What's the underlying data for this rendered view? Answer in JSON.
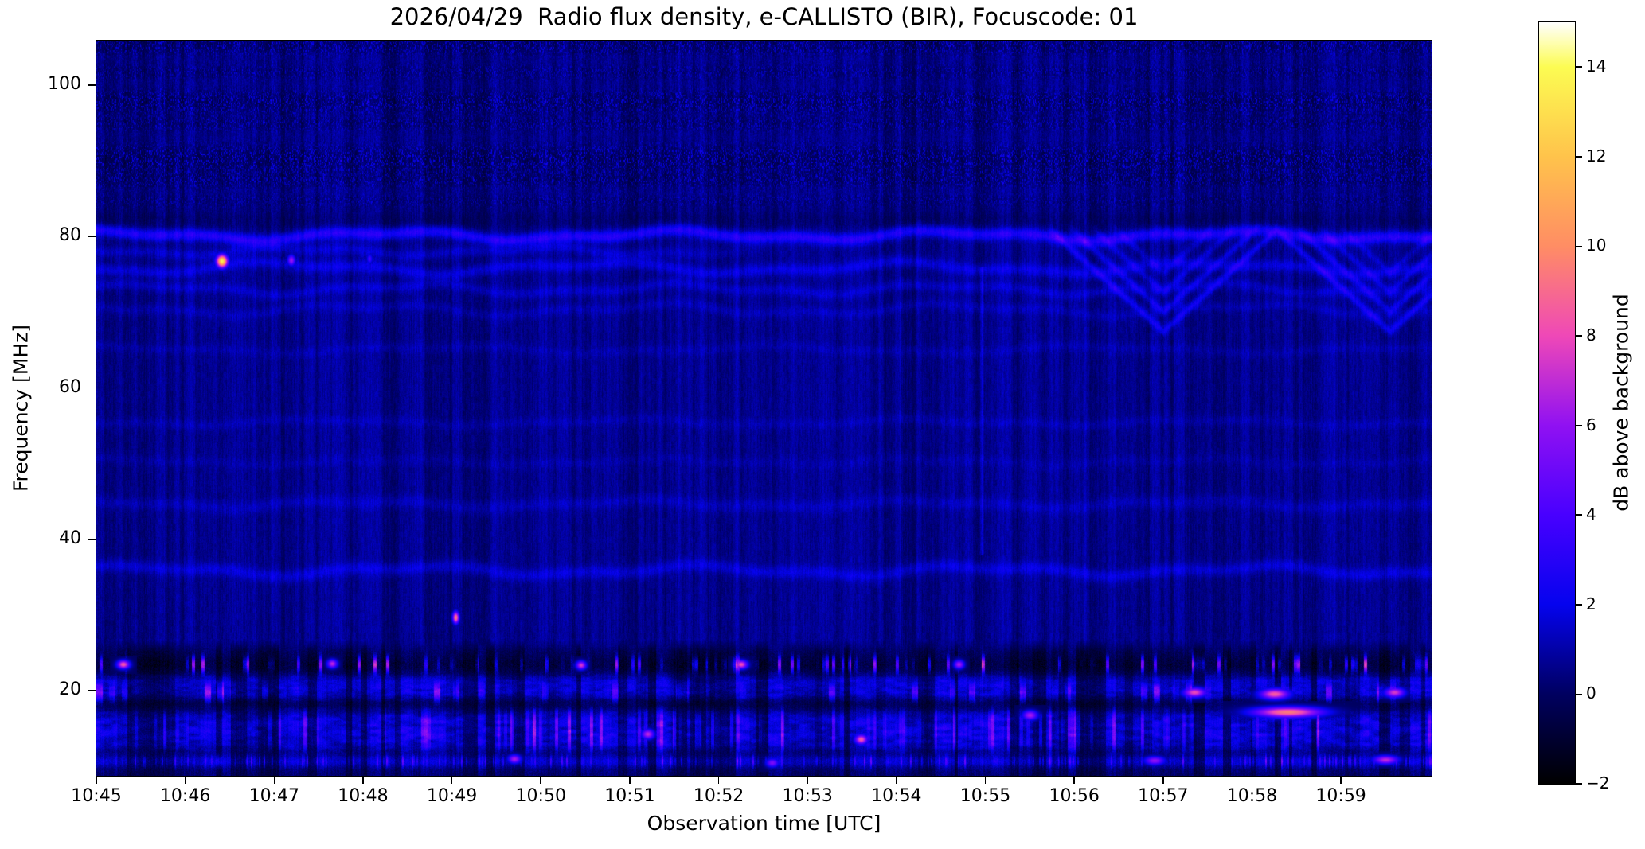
{
  "chart_data": {
    "type": "heatmap",
    "subtype": "radio-spectrogram",
    "title": "2026/04/29  Radio flux density, e-CALLISTO (BIR), Focuscode: 01",
    "xlabel": "Observation time [UTC]",
    "ylabel": "Frequency [MHz]",
    "x_start_time": "10:45",
    "x_end_time": "11:00",
    "x_span_minutes": 15.02,
    "x_tick_labels": [
      "10:45",
      "10:46",
      "10:47",
      "10:48",
      "10:49",
      "10:50",
      "10:51",
      "10:52",
      "10:53",
      "10:54",
      "10:55",
      "10:56",
      "10:57",
      "10:58",
      "10:59"
    ],
    "y_tick_values": [
      100,
      80,
      60,
      40,
      20
    ],
    "y_tick_labels": [
      "100",
      "80",
      "60",
      "40",
      "20"
    ],
    "ylim_mhz": [
      8.75,
      105.89
    ],
    "grid": false,
    "colorbar": {
      "label": "dB above background",
      "min": -2,
      "max": 15,
      "tick_values": [
        -2,
        0,
        2,
        4,
        6,
        8,
        10,
        12,
        14
      ],
      "tick_labels": [
        "−2",
        "0",
        "2",
        "4",
        "6",
        "8",
        "10",
        "12",
        "14"
      ],
      "colormap": "gnuplot2",
      "stops": [
        {
          "v": -2,
          "color": "#000000"
        },
        {
          "v": 0,
          "color": "#000060"
        },
        {
          "v": 2,
          "color": "#0503ee"
        },
        {
          "v": 4,
          "color": "#4800ff"
        },
        {
          "v": 6,
          "color": "#9011f2"
        },
        {
          "v": 8,
          "color": "#ef48b7"
        },
        {
          "v": 10,
          "color": "#ff8d64"
        },
        {
          "v": 12,
          "color": "#ffc34b"
        },
        {
          "v": 14,
          "color": "#fcfc52"
        },
        {
          "v": 15,
          "color": "#ffffff"
        }
      ]
    },
    "background_level_db": 0.85,
    "features": {
      "top_noise_bands": [
        {
          "f": 105.3,
          "w": 1.0,
          "s": 1.0
        },
        {
          "f": 101.8,
          "w": 0.8,
          "s": 0.7
        },
        {
          "f": 97.8,
          "w": 1.2,
          "s": 1.1
        },
        {
          "f": 95.0,
          "w": 0.8,
          "s": 0.8
        },
        {
          "f": 90.3,
          "w": 1.4,
          "s": 1.2
        },
        {
          "f": 87.6,
          "w": 0.9,
          "s": 0.9
        },
        {
          "f": 84.8,
          "w": 0.7,
          "s": 0.6
        }
      ],
      "wavy_lines": [
        {
          "f": 80.2,
          "amp": 0.75,
          "per": 2.0,
          "ph": 1.2,
          "s": 2.3,
          "th": 0.55,
          "tmax": null
        },
        {
          "f": 78.1,
          "amp": 0.6,
          "per": 2.3,
          "ph": 2.6,
          "s": 0.85,
          "th": 0.5,
          "tmax": 8
        },
        {
          "f": 75.9,
          "amp": 0.9,
          "per": 1.8,
          "ph": 4.1,
          "s": 1.15,
          "th": 0.55,
          "tmax": null
        },
        {
          "f": 73.1,
          "amp": 0.8,
          "per": 2.1,
          "ph": 0.4,
          "s": 0.8,
          "th": 0.5,
          "tmax": null
        },
        {
          "f": 70.4,
          "amp": 0.9,
          "per": 1.9,
          "ph": 2.1,
          "s": 0.55,
          "th": 0.5,
          "tmax": null
        },
        {
          "f": 65.1,
          "amp": 0.6,
          "per": 1.7,
          "ph": 1.3,
          "s": 0.4,
          "th": 0.5,
          "tmax": null
        },
        {
          "f": 55.5,
          "amp": 0.5,
          "per": 1.9,
          "ph": 2.9,
          "s": 0.45,
          "th": 0.5,
          "tmax": null
        },
        {
          "f": 50.3,
          "amp": 0.5,
          "per": 2.1,
          "ph": 0.8,
          "s": 0.33,
          "th": 0.5,
          "tmax": null
        },
        {
          "f": 44.7,
          "amp": 0.6,
          "per": 2.0,
          "ph": 2.0,
          "s": 0.6,
          "th": 0.6,
          "tmax": null
        },
        {
          "f": 35.9,
          "amp": 0.8,
          "per": 2.0,
          "ph": 0.6,
          "s": 1.05,
          "th": 0.6,
          "tmax": null
        }
      ],
      "chevron_pattern": {
        "t_fade_in": 9.9,
        "vertex_times": [
          12.0,
          14.55
        ],
        "f_base": 67.5,
        "slope_mhz_per_min": 10.5,
        "line_spacing": 2.6,
        "num_lines": 4,
        "strength": 1.55,
        "f_ceiling": 80.2
      },
      "vertical_streak": {
        "t": 9.96,
        "f_lo": 38,
        "f_hi": 76,
        "s": 1.2
      },
      "rfi_rows": {
        "dot_row": {
          "f": 23.5,
          "w": 0.7
        },
        "blue_row": {
          "f": 21.3,
          "w": 0.65
        },
        "speckle_row": {
          "f": 19.8,
          "w": 0.8
        },
        "gap_row": {
          "f": 18.4,
          "w": 0.7
        },
        "broad_band": {
          "f": 14.8,
          "w": 2.6
        },
        "bottom_row": {
          "f": 10.7,
          "w": 0.55
        },
        "rfi_top_edge_mhz": 26.8
      },
      "hotspots": [
        {
          "t": 1.41,
          "f": 76.8,
          "a": 13.5,
          "dt": 0.045,
          "df": 0.6
        },
        {
          "t": 2.19,
          "f": 76.9,
          "a": 6.2,
          "dt": 0.03,
          "df": 0.5
        },
        {
          "t": 3.07,
          "f": 77.1,
          "a": 3.8,
          "dt": 0.022,
          "df": 0.45
        },
        {
          "t": 4.04,
          "f": 29.7,
          "a": 9.5,
          "dt": 0.025,
          "df": 0.55
        },
        {
          "t": 0.3,
          "f": 23.5,
          "a": 8.5,
          "dt": 0.05,
          "df": 0.4
        },
        {
          "t": 2.65,
          "f": 23.6,
          "a": 7.0,
          "dt": 0.04,
          "df": 0.4
        },
        {
          "t": 5.45,
          "f": 23.4,
          "a": 7.5,
          "dt": 0.04,
          "df": 0.4
        },
        {
          "t": 7.25,
          "f": 23.5,
          "a": 8.2,
          "dt": 0.05,
          "df": 0.4
        },
        {
          "t": 9.7,
          "f": 23.5,
          "a": 6.5,
          "dt": 0.04,
          "df": 0.4
        },
        {
          "t": 12.35,
          "f": 19.8,
          "a": 8.0,
          "dt": 0.09,
          "df": 0.45
        },
        {
          "t": 13.25,
          "f": 19.6,
          "a": 8.5,
          "dt": 0.12,
          "df": 0.5
        },
        {
          "t": 14.6,
          "f": 19.8,
          "a": 7.5,
          "dt": 0.08,
          "df": 0.45
        },
        {
          "t": 8.6,
          "f": 13.6,
          "a": 8.5,
          "dt": 0.05,
          "df": 0.45
        },
        {
          "t": 6.2,
          "f": 14.3,
          "a": 7.0,
          "dt": 0.05,
          "df": 0.45
        },
        {
          "t": 10.5,
          "f": 16.8,
          "a": 6.5,
          "dt": 0.06,
          "df": 0.45
        },
        {
          "t": 13.4,
          "f": 17.2,
          "a": 9.5,
          "dt": 0.28,
          "df": 0.5
        },
        {
          "t": 4.7,
          "f": 11.0,
          "a": 6.5,
          "dt": 0.05,
          "df": 0.4
        },
        {
          "t": 7.6,
          "f": 10.5,
          "a": 5.5,
          "dt": 0.05,
          "df": 0.4
        },
        {
          "t": 11.9,
          "f": 10.8,
          "a": 6.0,
          "dt": 0.08,
          "df": 0.4
        },
        {
          "t": 14.5,
          "f": 10.9,
          "a": 7.0,
          "dt": 0.1,
          "df": 0.4
        }
      ]
    }
  }
}
